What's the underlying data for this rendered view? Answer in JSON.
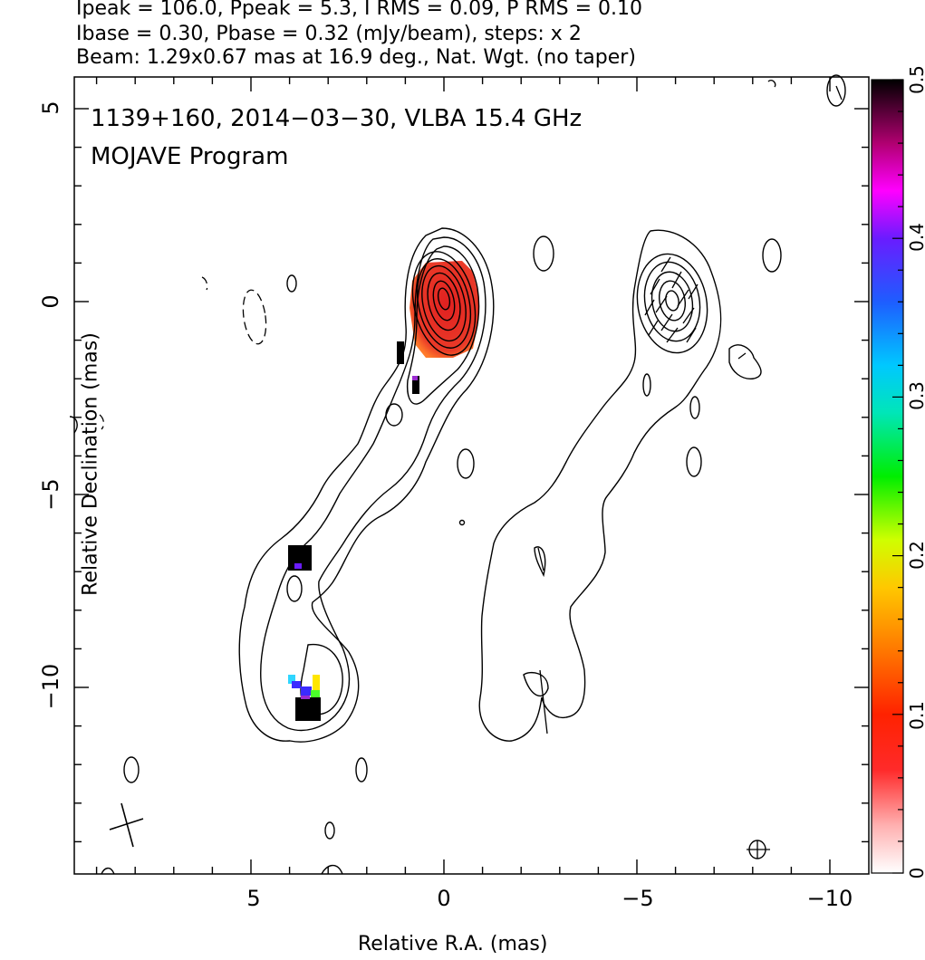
{
  "header": {
    "line1": "Ipeak = 106.0, Ppeak = 5.3, I RMS = 0.09, P RMS = 0.10",
    "line2": "Ibase = 0.30, Pbase = 0.32 (mJy/beam), steps: x 2",
    "line3": "Beam: 1.29x0.67 mas at 16.9 deg., Nat. Wgt. (no taper)"
  },
  "overlay": {
    "source_line": "1139+160, 2014−03−30, VLBA 15.4 GHz",
    "program": "MOJAVE Program"
  },
  "axes": {
    "xlabel": "Relative R.A. (mas)",
    "ylabel": "Relative Declination (mas)",
    "x_ticks": [
      "5",
      "0",
      "−5",
      "−10"
    ],
    "y_ticks": [
      "5",
      "0",
      "−5",
      "−10"
    ],
    "x_range": [
      9.6,
      -11.3
    ],
    "y_range": [
      -14.8,
      5.8
    ]
  },
  "colorbar": {
    "ticks": [
      "0",
      "0.1",
      "0.2",
      "0.3",
      "0.4",
      "0.5"
    ],
    "range": [
      0,
      0.5
    ],
    "colors": [
      "#ffffff",
      "#ff3b3b",
      "#ff0000",
      "#ff7700",
      "#ffd400",
      "#b7ff00",
      "#00ee00",
      "#00e0c0",
      "#00c8ff",
      "#2255ff",
      "#6a1cff",
      "#ff00ff",
      "#c0007a",
      "#000000"
    ]
  },
  "colors": {
    "core_fill": "#e8332a",
    "core_edge": "#ff8a2a",
    "pixel_black": "#000000",
    "pixel_blue": "#3b2bff",
    "pixel_magenta": "#9a2bd0",
    "pixel_yellow": "#ffe600",
    "pixel_cyan": "#2fd6ff",
    "pixel_green": "#4aff2a"
  }
}
